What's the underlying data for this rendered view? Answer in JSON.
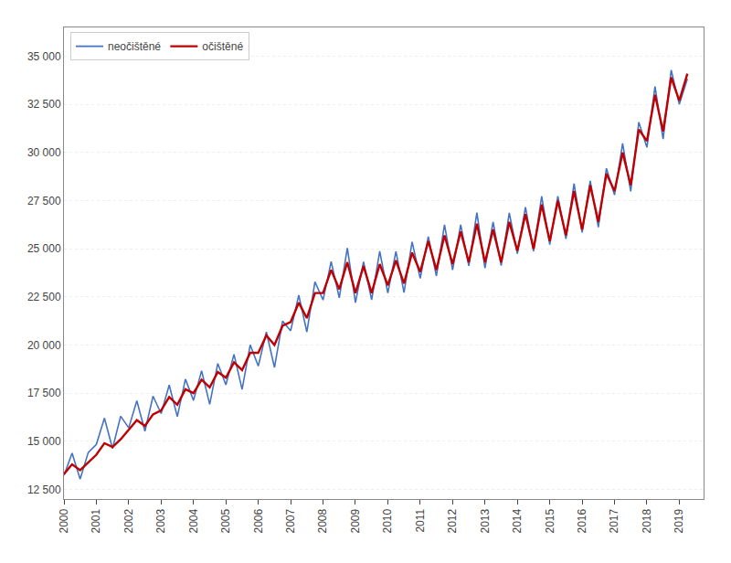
{
  "chart_data": {
    "type": "line",
    "x": [
      2000,
      2000.25,
      2000.5,
      2000.75,
      2001,
      2001.25,
      2001.5,
      2001.75,
      2002,
      2002.25,
      2002.5,
      2002.75,
      2003,
      2003.25,
      2003.5,
      2003.75,
      2004,
      2004.25,
      2004.5,
      2004.75,
      2005,
      2005.25,
      2005.5,
      2005.75,
      2006,
      2006.25,
      2006.5,
      2006.75,
      2007,
      2007.25,
      2007.5,
      2007.75,
      2008,
      2008.25,
      2008.5,
      2008.75,
      2009,
      2009.25,
      2009.5,
      2009.75,
      2010,
      2010.25,
      2010.5,
      2010.75,
      2011,
      2011.25,
      2011.5,
      2011.75,
      2012,
      2012.25,
      2012.5,
      2012.75,
      2013,
      2013.25,
      2013.5,
      2013.75,
      2014,
      2014.25,
      2014.5,
      2014.75,
      2015,
      2015.25,
      2015.5,
      2015.75,
      2016,
      2016.25,
      2016.5,
      2016.75,
      2017,
      2017.25,
      2017.5,
      2017.75,
      2018,
      2018.25,
      2018.5,
      2018.75,
      2019,
      2019.25
    ],
    "series": [
      {
        "name": "neočištěné",
        "color": "#4472C4",
        "values": [
          13219,
          14381,
          13038,
          14417,
          14834,
          16199,
          14622,
          16302,
          15697,
          17105,
          15527,
          17343,
          16438,
          17922,
          16280,
          18224,
          17123,
          18664,
          16922,
          19042,
          17936,
          19521,
          17694,
          20011,
          18904,
          20678,
          18835,
          21246,
          20740,
          22592,
          20678,
          23280,
          22337,
          24339,
          22457,
          25035,
          22200,
          24326,
          22350,
          24868,
          22697,
          24864,
          22721,
          25363,
          23466,
          25630,
          23586,
          26247,
          23906,
          26246,
          24110,
          26880,
          23994,
          26392,
          24121,
          26867,
          24742,
          27161,
          24876,
          27728,
          25219,
          27737,
          25512,
          28387,
          25849,
          28534,
          26117,
          29178,
          27797,
          30480,
          27979,
          31580,
          30265,
          33429,
          30699,
          34285,
          32507,
          33833
        ]
      },
      {
        "name": "očištěné",
        "color": "#C00000",
        "values": [
          13300,
          13800,
          13500,
          13900,
          14300,
          14900,
          14700,
          15100,
          15600,
          16100,
          15800,
          16400,
          16600,
          17300,
          16900,
          17700,
          17500,
          18200,
          17800,
          18600,
          18300,
          19100,
          18700,
          19600,
          19600,
          20500,
          20000,
          21000,
          21200,
          22200,
          21400,
          22700,
          22700,
          23900,
          22900,
          24300,
          22700,
          24100,
          22700,
          24200,
          23100,
          24400,
          23200,
          24800,
          23800,
          25400,
          23900,
          25700,
          24200,
          25900,
          24300,
          26300,
          24300,
          26000,
          24300,
          26400,
          24900,
          26800,
          25000,
          27300,
          25400,
          27500,
          25700,
          28000,
          26000,
          28300,
          26400,
          28900,
          28000,
          30000,
          28300,
          31200,
          30600,
          33000,
          31100,
          33900,
          32700,
          34100
        ]
      }
    ],
    "xlim": [
      2000,
      2019.75
    ],
    "xticks": [
      2000,
      2001,
      2002,
      2003,
      2004,
      2005,
      2006,
      2007,
      2008,
      2009,
      2010,
      2011,
      2012,
      2013,
      2014,
      2015,
      2016,
      2017,
      2018,
      2019
    ],
    "ylim": [
      12000,
      36500
    ],
    "yticks": [
      {
        "value": 12500,
        "label": "12 500"
      },
      {
        "value": 15000,
        "label": "15 000"
      },
      {
        "value": 17500,
        "label": "17 500"
      },
      {
        "value": 20000,
        "label": "20 000"
      },
      {
        "value": 22500,
        "label": "22 500"
      },
      {
        "value": 25000,
        "label": "25 000"
      },
      {
        "value": 27500,
        "label": "27 500"
      },
      {
        "value": 30000,
        "label": "30 000"
      },
      {
        "value": 32500,
        "label": "32 500"
      },
      {
        "value": 35000,
        "label": "35 000"
      }
    ],
    "grid": true,
    "legend": "upper left"
  }
}
